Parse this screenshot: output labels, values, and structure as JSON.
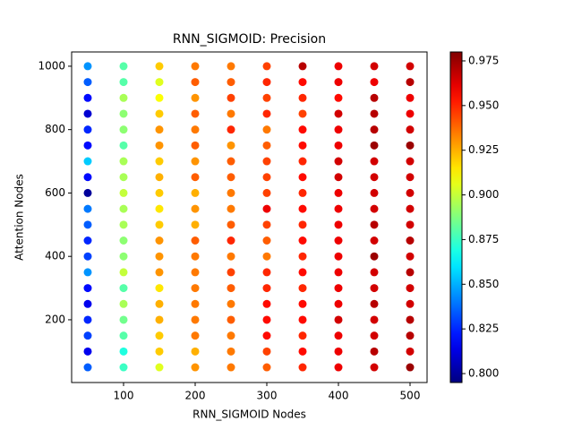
{
  "chart_data": {
    "type": "scatter",
    "title": "RNN_SIGMOID: Precision",
    "x_label": "RNN_SIGMOID Nodes",
    "y_label": "Attention Nodes",
    "colormap": "jet",
    "x": [
      50,
      100,
      150,
      200,
      250,
      300,
      350,
      400,
      450,
      500
    ],
    "y": [
      50,
      100,
      150,
      200,
      250,
      300,
      350,
      400,
      450,
      500,
      550,
      600,
      650,
      700,
      750,
      800,
      850,
      900,
      950,
      1000
    ],
    "values": [
      [
        0.835,
        0.815,
        0.83,
        0.825,
        0.815,
        0.82,
        0.845,
        0.83,
        0.825,
        0.835,
        0.84,
        0.8,
        0.82,
        0.855,
        0.82,
        0.825,
        0.81,
        0.82,
        0.835,
        0.845
      ],
      [
        0.875,
        0.87,
        0.88,
        0.885,
        0.895,
        0.88,
        0.9,
        0.89,
        0.89,
        0.895,
        0.895,
        0.9,
        0.895,
        0.895,
        0.88,
        0.89,
        0.89,
        0.895,
        0.88,
        0.88
      ],
      [
        0.905,
        0.92,
        0.92,
        0.925,
        0.925,
        0.915,
        0.93,
        0.93,
        0.93,
        0.92,
        0.915,
        0.92,
        0.925,
        0.92,
        0.93,
        0.93,
        0.92,
        0.91,
        0.905,
        0.92
      ],
      [
        0.93,
        0.925,
        0.935,
        0.935,
        0.935,
        0.935,
        0.935,
        0.935,
        0.94,
        0.925,
        0.93,
        0.925,
        0.94,
        0.93,
        0.94,
        0.935,
        0.94,
        0.93,
        0.94,
        0.935
      ],
      [
        0.935,
        0.935,
        0.935,
        0.94,
        0.935,
        0.94,
        0.945,
        0.935,
        0.95,
        0.94,
        0.935,
        0.935,
        0.94,
        0.94,
        0.93,
        0.95,
        0.935,
        0.945,
        0.94,
        0.935
      ],
      [
        0.94,
        0.945,
        0.955,
        0.955,
        0.955,
        0.95,
        0.95,
        0.935,
        0.94,
        0.945,
        0.96,
        0.945,
        0.945,
        0.945,
        0.94,
        0.935,
        0.95,
        0.945,
        0.95,
        0.945
      ],
      [
        0.95,
        0.955,
        0.95,
        0.955,
        0.955,
        0.95,
        0.955,
        0.95,
        0.955,
        0.95,
        0.955,
        0.95,
        0.955,
        0.95,
        0.955,
        0.955,
        0.945,
        0.95,
        0.955,
        0.97
      ],
      [
        0.96,
        0.96,
        0.96,
        0.965,
        0.96,
        0.96,
        0.96,
        0.96,
        0.96,
        0.96,
        0.96,
        0.96,
        0.965,
        0.965,
        0.96,
        0.96,
        0.965,
        0.955,
        0.96,
        0.96
      ],
      [
        0.965,
        0.97,
        0.965,
        0.965,
        0.97,
        0.965,
        0.965,
        0.975,
        0.965,
        0.97,
        0.965,
        0.965,
        0.965,
        0.965,
        0.975,
        0.97,
        0.97,
        0.97,
        0.96,
        0.965
      ],
      [
        0.975,
        0.965,
        0.97,
        0.97,
        0.965,
        0.965,
        0.97,
        0.965,
        0.97,
        0.965,
        0.965,
        0.965,
        0.965,
        0.965,
        0.975,
        0.965,
        0.96,
        0.96,
        0.97,
        0.965
      ]
    ],
    "xlim": [
      27.5,
      523.75
    ],
    "ylim": [
      2,
      1045
    ],
    "xticks": [
      100,
      200,
      300,
      400,
      500
    ],
    "yticks": [
      200,
      400,
      600,
      800,
      1000
    ],
    "clim": [
      0.795,
      0.98
    ],
    "cticks": [
      {
        "value": 0.8,
        "label": "0.800"
      },
      {
        "value": 0.825,
        "label": "0.825"
      },
      {
        "value": 0.85,
        "label": "0.850"
      },
      {
        "value": 0.875,
        "label": "0.875"
      },
      {
        "value": 0.9,
        "label": "0.900"
      },
      {
        "value": 0.925,
        "label": "0.925"
      },
      {
        "value": 0.95,
        "label": "0.950"
      },
      {
        "value": 0.975,
        "label": "0.975"
      }
    ]
  }
}
